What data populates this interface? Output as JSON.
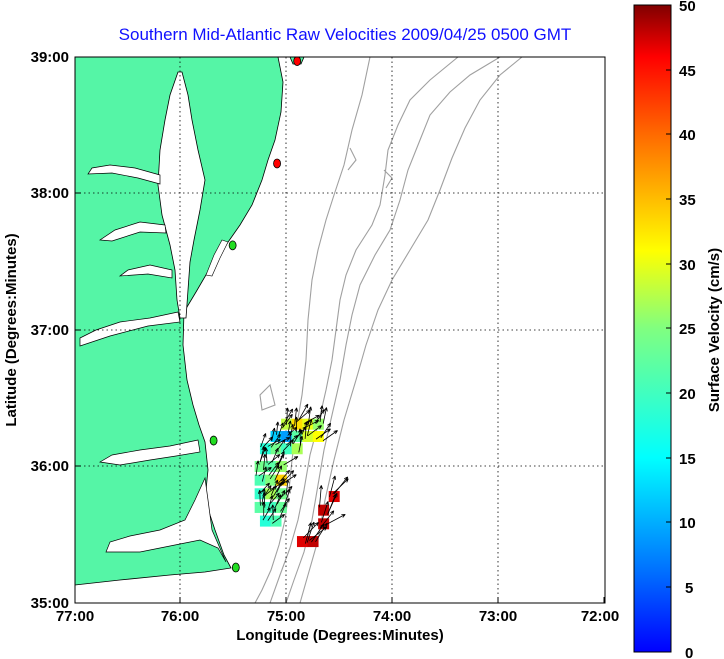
{
  "title": "Southern Mid-Atlantic Raw Velocities 2009/04/25 0500 GMT",
  "x_axis": {
    "label": "Longitude (Degrees:Minutes)",
    "ticks": [
      "77:00",
      "76:00",
      "75:00",
      "74:00",
      "73:00",
      "72:00"
    ]
  },
  "y_axis": {
    "label": "Latitude (Degrees:Minutes)",
    "ticks": [
      "39:00",
      "38:00",
      "37:00",
      "36:00",
      "35:00"
    ]
  },
  "colorbar": {
    "label": "Surface Velocity (cm/s)",
    "ticks": [
      "50",
      "45",
      "40",
      "35",
      "30",
      "25",
      "20",
      "15",
      "10",
      "5",
      "0"
    ],
    "range": [
      0,
      50
    ],
    "colormap": "jet"
  },
  "map": {
    "extent_lon_deg_west": [
      77,
      72
    ],
    "extent_lat_deg_north": [
      35,
      39
    ],
    "grid": "dotted",
    "land_color": "#55f5a6",
    "bathymetry_color": "#a0a0a0",
    "station_markers": [
      {
        "lon": 74.9,
        "lat": 38.97,
        "color": "#ff0000"
      },
      {
        "lon": 75.09,
        "lat": 38.22,
        "color": "#ff0000"
      },
      {
        "lon": 75.51,
        "lat": 37.62,
        "color": "#22dd22"
      },
      {
        "lon": 75.69,
        "lat": 36.19,
        "color": "#22dd22"
      },
      {
        "lon": 75.48,
        "lat": 35.26,
        "color": "#22dd22"
      }
    ],
    "velocity_cells": [
      {
        "lon": 75.0,
        "lat": 36.31,
        "v": 28
      },
      {
        "lon": 74.9,
        "lat": 36.31,
        "v": 33
      },
      {
        "lon": 74.8,
        "lat": 36.31,
        "v": 30
      },
      {
        "lon": 74.7,
        "lat": 36.31,
        "v": 26
      },
      {
        "lon": 75.1,
        "lat": 36.22,
        "v": 12
      },
      {
        "lon": 75.0,
        "lat": 36.22,
        "v": 9
      },
      {
        "lon": 74.9,
        "lat": 36.22,
        "v": 22
      },
      {
        "lon": 74.8,
        "lat": 36.22,
        "v": 29
      },
      {
        "lon": 74.7,
        "lat": 36.22,
        "v": 31
      },
      {
        "lon": 75.2,
        "lat": 36.13,
        "v": 18
      },
      {
        "lon": 75.1,
        "lat": 36.13,
        "v": 24
      },
      {
        "lon": 75.0,
        "lat": 36.13,
        "v": 20
      },
      {
        "lon": 74.9,
        "lat": 36.13,
        "v": 27
      },
      {
        "lon": 75.25,
        "lat": 36.0,
        "v": 24
      },
      {
        "lon": 75.15,
        "lat": 36.0,
        "v": 22
      },
      {
        "lon": 75.05,
        "lat": 36.0,
        "v": 26
      },
      {
        "lon": 75.25,
        "lat": 35.9,
        "v": 21
      },
      {
        "lon": 75.15,
        "lat": 35.9,
        "v": 25
      },
      {
        "lon": 75.05,
        "lat": 35.9,
        "v": 34
      },
      {
        "lon": 75.25,
        "lat": 35.8,
        "v": 19
      },
      {
        "lon": 75.15,
        "lat": 35.8,
        "v": 27
      },
      {
        "lon": 75.05,
        "lat": 35.8,
        "v": 24
      },
      {
        "lon": 75.25,
        "lat": 35.7,
        "v": 22
      },
      {
        "lon": 75.15,
        "lat": 35.7,
        "v": 20
      },
      {
        "lon": 75.05,
        "lat": 35.7,
        "v": 23
      },
      {
        "lon": 75.2,
        "lat": 35.6,
        "v": 18
      },
      {
        "lon": 75.1,
        "lat": 35.6,
        "v": 21
      },
      {
        "lon": 74.55,
        "lat": 35.78,
        "v": 47
      },
      {
        "lon": 74.65,
        "lat": 35.68,
        "v": 48
      },
      {
        "lon": 74.65,
        "lat": 35.58,
        "v": 48
      },
      {
        "lon": 74.85,
        "lat": 35.45,
        "v": 47
      },
      {
        "lon": 74.75,
        "lat": 35.45,
        "v": 48
      }
    ]
  }
}
